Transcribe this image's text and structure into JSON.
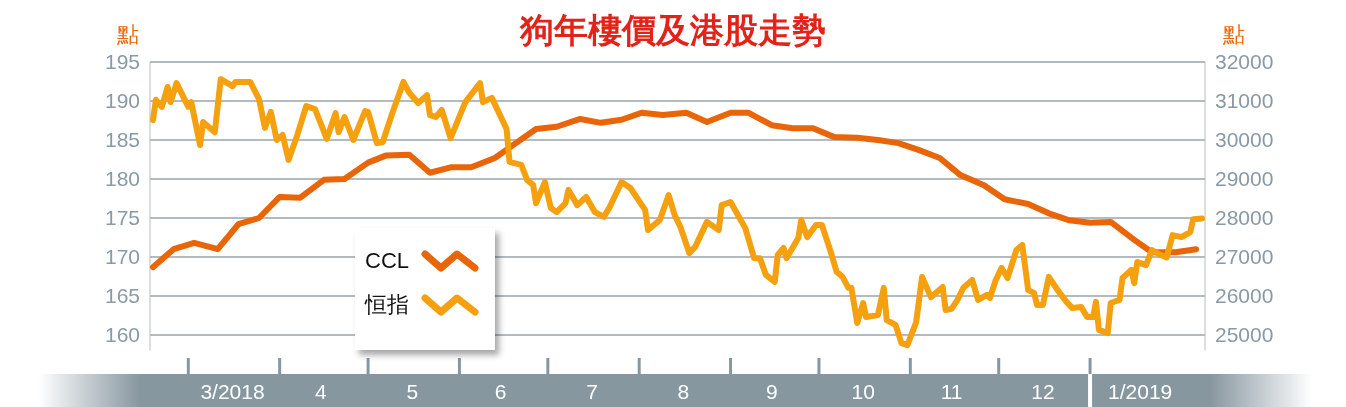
{
  "chart_data": {
    "type": "line",
    "title": "狗年樓價及港股走勢",
    "ylabel": "點",
    "y2label": "點",
    "xlim": [
      "2018-02-16",
      "2019-02-09"
    ],
    "xticks": [
      {
        "value": "2018-03-01",
        "label": null
      },
      {
        "value": "2018-03-16",
        "label": "3/2018"
      },
      {
        "value": "2018-04-01",
        "label": null
      },
      {
        "value": "2018-04-15",
        "label": "4"
      },
      {
        "value": "2018-05-01",
        "label": null
      },
      {
        "value": "2018-05-16",
        "label": "5"
      },
      {
        "value": "2018-06-01",
        "label": null
      },
      {
        "value": "2018-06-15",
        "label": "6"
      },
      {
        "value": "2018-07-01",
        "label": null
      },
      {
        "value": "2018-07-16",
        "label": "7"
      },
      {
        "value": "2018-08-01",
        "label": null
      },
      {
        "value": "2018-08-16",
        "label": "8"
      },
      {
        "value": "2018-09-01",
        "label": null
      },
      {
        "value": "2018-09-15",
        "label": "9"
      },
      {
        "value": "2018-10-01",
        "label": null
      },
      {
        "value": "2018-10-16",
        "label": "10"
      },
      {
        "value": "2018-11-01",
        "label": null
      },
      {
        "value": "2018-11-15",
        "label": "11"
      },
      {
        "value": "2018-12-01",
        "label": null
      },
      {
        "value": "2018-12-16",
        "label": "12"
      },
      {
        "value": "2019-01-01",
        "label": null
      },
      {
        "value": "2019-01-18",
        "label": "1/2019"
      }
    ],
    "ylim": [
      158,
      195
    ],
    "yticks": [
      160,
      165,
      170,
      175,
      180,
      185,
      190,
      195
    ],
    "y2lim": [
      24600,
      32000
    ],
    "y2ticks": [
      25000,
      26000,
      27000,
      28000,
      29000,
      30000,
      31000,
      32000
    ],
    "grid": "y",
    "legend": "bottom left",
    "marker": "none",
    "line_style": "solid",
    "series": [
      {
        "name": "CCL",
        "color": "#e8650a",
        "x": [
          "2018-02-17",
          "2018-02-24",
          "2018-03-03",
          "2018-03-11",
          "2018-03-18",
          "2018-03-25",
          "2018-04-01",
          "2018-04-08",
          "2018-04-16",
          "2018-04-23",
          "2018-05-01",
          "2018-05-07",
          "2018-05-15",
          "2018-05-22",
          "2018-05-29",
          "2018-06-05",
          "2018-06-13",
          "2018-06-27",
          "2018-07-04",
          "2018-07-12",
          "2018-07-19",
          "2018-07-26",
          "2018-08-02",
          "2018-08-09",
          "2018-08-17",
          "2018-08-24",
          "2018-09-01",
          "2018-09-07",
          "2018-09-15",
          "2018-09-22",
          "2018-09-29",
          "2018-10-06",
          "2018-10-14",
          "2018-10-21",
          "2018-10-28",
          "2018-11-04",
          "2018-11-11",
          "2018-11-18",
          "2018-11-26",
          "2018-12-03",
          "2018-12-11",
          "2018-12-18",
          "2018-12-25",
          "2019-01-01",
          "2019-01-08",
          "2019-01-16",
          "2019-01-22",
          "2019-01-30",
          "2019-02-06"
        ],
        "values": [
          168.7,
          171.0,
          171.8,
          171.0,
          174.2,
          175.0,
          177.7,
          177.6,
          179.9,
          180.0,
          182.1,
          183.0,
          183.1,
          180.8,
          181.5,
          181.5,
          182.7,
          186.4,
          186.7,
          187.7,
          187.2,
          187.6,
          188.5,
          188.2,
          188.5,
          187.3,
          188.5,
          188.5,
          186.9,
          186.5,
          186.5,
          185.4,
          185.3,
          185.0,
          184.6,
          183.7,
          182.7,
          180.5,
          179.2,
          177.4,
          176.8,
          175.6,
          174.7,
          174.4,
          174.5,
          172.2,
          170.6,
          170.6,
          171.0
        ]
      },
      {
        "name": "恒指",
        "color": "#f5a00f",
        "axis": "y2",
        "x": [
          "2018-02-17",
          "2018-02-18",
          "2018-02-20",
          "2018-02-22",
          "2018-02-23",
          "2018-02-25",
          "2018-03-01",
          "2018-03-02",
          "2018-03-05",
          "2018-03-06",
          "2018-03-10",
          "2018-03-12",
          "2018-03-16",
          "2018-03-17",
          "2018-03-22",
          "2018-03-25",
          "2018-03-27",
          "2018-03-29",
          "2018-03-31",
          "2018-04-02",
          "2018-04-04",
          "2018-04-07",
          "2018-04-10",
          "2018-04-13",
          "2018-04-17",
          "2018-04-20",
          "2018-04-21",
          "2018-04-23",
          "2018-04-26",
          "2018-04-30",
          "2018-05-01",
          "2018-05-04",
          "2018-05-06",
          "2018-05-09",
          "2018-05-13",
          "2018-05-15",
          "2018-05-18",
          "2018-05-21",
          "2018-05-22",
          "2018-05-24",
          "2018-05-26",
          "2018-05-29",
          "2018-06-03",
          "2018-06-08",
          "2018-06-09",
          "2018-06-12",
          "2018-06-17",
          "2018-06-18",
          "2018-06-22",
          "2018-06-24",
          "2018-06-26",
          "2018-06-27",
          "2018-06-30",
          "2018-07-02",
          "2018-07-04",
          "2018-07-07",
          "2018-07-08",
          "2018-07-11",
          "2018-07-14",
          "2018-07-17",
          "2018-07-20",
          "2018-07-22",
          "2018-07-26",
          "2018-07-29",
          "2018-08-03",
          "2018-08-04",
          "2018-08-08",
          "2018-08-11",
          "2018-08-13",
          "2018-08-15",
          "2018-08-18",
          "2018-08-20",
          "2018-08-24",
          "2018-08-28",
          "2018-08-29",
          "2018-09-01",
          "2018-09-06",
          "2018-09-09",
          "2018-09-11",
          "2018-09-13",
          "2018-09-16",
          "2018-09-17",
          "2018-09-19",
          "2018-09-20",
          "2018-09-24",
          "2018-09-25",
          "2018-09-27",
          "2018-09-30",
          "2018-10-02",
          "2018-10-05",
          "2018-10-07",
          "2018-10-09",
          "2018-10-11",
          "2018-10-12",
          "2018-10-14",
          "2018-10-16",
          "2018-10-17",
          "2018-10-21",
          "2018-10-23",
          "2018-10-24",
          "2018-10-27",
          "2018-10-29",
          "2018-10-31",
          "2018-11-03",
          "2018-11-05",
          "2018-11-08",
          "2018-11-12",
          "2018-11-13",
          "2018-11-15",
          "2018-11-17",
          "2018-11-19",
          "2018-11-22",
          "2018-11-24",
          "2018-11-27",
          "2018-11-28",
          "2018-11-30",
          "2018-12-02",
          "2018-12-04",
          "2018-12-07",
          "2018-12-09",
          "2018-12-11",
          "2018-12-13",
          "2018-12-14",
          "2018-12-16",
          "2018-12-18",
          "2018-12-21",
          "2018-12-24",
          "2018-12-26",
          "2018-12-29",
          "2018-12-31",
          "2019-01-02",
          "2019-01-03",
          "2019-01-04",
          "2019-01-07",
          "2019-01-08",
          "2019-01-11",
          "2019-01-12",
          "2019-01-15",
          "2019-01-16",
          "2019-01-17",
          "2019-01-20",
          "2019-01-22",
          "2019-01-25",
          "2019-01-27",
          "2019-01-29",
          "2019-02-01",
          "2019-02-04",
          "2019-02-05",
          "2019-02-08"
        ],
        "values": [
          30510,
          31030,
          30850,
          31360,
          30970,
          31460,
          30850,
          30970,
          29870,
          30460,
          30200,
          31560,
          31380,
          31490,
          31490,
          31050,
          30310,
          30720,
          30000,
          30130,
          29490,
          30130,
          30870,
          30790,
          30030,
          30690,
          30200,
          30590,
          30000,
          30740,
          30720,
          29920,
          29950,
          30640,
          31490,
          31210,
          30950,
          31150,
          30640,
          30590,
          30770,
          30050,
          30970,
          31460,
          30970,
          31080,
          30280,
          29440,
          29360,
          28970,
          28850,
          28380,
          28920,
          28260,
          28150,
          28380,
          28720,
          28330,
          28540,
          28150,
          28030,
          28280,
          28920,
          28770,
          28210,
          27690,
          27950,
          28590,
          28080,
          27770,
          27100,
          27260,
          27900,
          27690,
          28330,
          28410,
          27740,
          26970,
          26970,
          26540,
          26360,
          27050,
          27230,
          26970,
          27490,
          27950,
          27510,
          27820,
          27820,
          27130,
          26620,
          26490,
          26210,
          26210,
          25310,
          25820,
          25460,
          25510,
          26210,
          25380,
          25260,
          24790,
          24740,
          25330,
          26490,
          25970,
          26230,
          25640,
          25670,
          25900,
          26210,
          26410,
          25900,
          26030,
          25950,
          26410,
          26720,
          26460,
          27180,
          27310,
          26150,
          26080,
          25770,
          25770,
          26490,
          26150,
          25850,
          25690,
          25720,
          25460,
          25460,
          25850,
          25130,
          25050,
          25820,
          25900,
          26460,
          26670,
          26330,
          26870,
          26790,
          27180,
          27050,
          26990,
          27560,
          27510,
          27640,
          27970,
          27990
        ]
      }
    ]
  }
}
